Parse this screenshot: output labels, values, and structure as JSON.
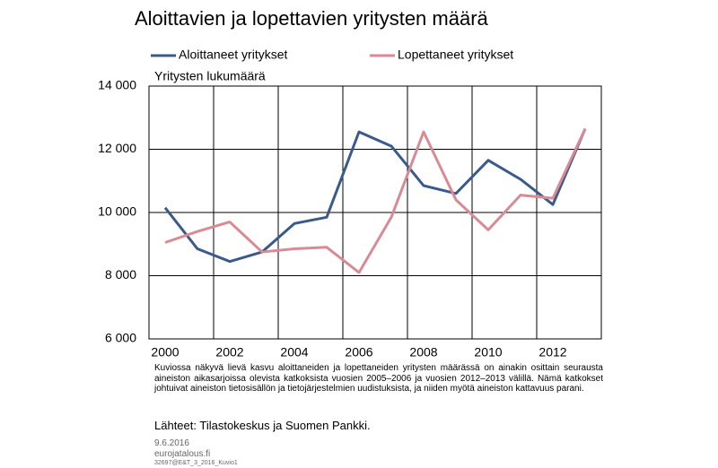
{
  "chart_data": {
    "type": "line",
    "title": "Aloittavien ja lopettavien yritysten määrä",
    "y_label": "Yritysten lukumäärä",
    "categories": [
      "2000",
      null,
      "2002",
      null,
      "2004",
      null,
      "2006",
      null,
      "2008",
      null,
      "2010",
      null,
      "2012",
      null
    ],
    "series": [
      {
        "name": "Aloittaneet yritykset",
        "color": "#3a5a8c",
        "values": [
          10150,
          8850,
          8450,
          8750,
          9650,
          9850,
          12550,
          12100,
          10850,
          10600,
          11650,
          11050,
          10250,
          12650
        ]
      },
      {
        "name": "Lopettaneet yritykset",
        "color": "#d98a94",
        "values": [
          9050,
          9400,
          9700,
          8750,
          8850,
          8900,
          8100,
          9850,
          12550,
          10400,
          9450,
          10550,
          10450,
          12650
        ]
      }
    ],
    "ylim": [
      6000,
      14000
    ],
    "yticks": [
      {
        "value": 6000,
        "label": "6 000"
      },
      {
        "value": 8000,
        "label": "8 000"
      },
      {
        "value": 10000,
        "label": "10 000"
      },
      {
        "value": 12000,
        "label": "12 000"
      },
      {
        "value": 14000,
        "label": "14 000"
      }
    ],
    "grid": true,
    "note": "Kuviossa näkyvä lievä kasvu aloittaneiden ja lopettaneiden yritysten määrässä on ainakin osittain seurausta aineiston aikasarjoissa olevista katkoksista vuosien 2005–2006 ja vuosien 2012–2013 välillä. Nämä katkokset johtuivat aineiston tietosisällön ja tietojärjestelmien uudistuksista, ja niiden myötä aineiston kattavuus parani.",
    "source": "Lähteet: Tilastokeskus ja Suomen Pankki.",
    "date": "9.6.2016",
    "site": "eurojatalous.fi",
    "code": "32697@E&T_3_2016_Kuvio1"
  }
}
